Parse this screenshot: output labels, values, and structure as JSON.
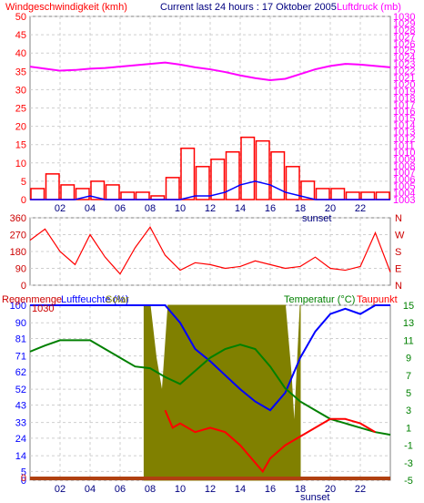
{
  "colors": {
    "red": "#ff0000",
    "blue": "#0000ff",
    "magenta": "#ff00ff",
    "darkred": "#cc0000",
    "green": "#008000",
    "olive": "#808000",
    "brown": "#b04010",
    "grid": "#cfcfcf",
    "frame": "#808080",
    "gust": "#ff0000",
    "speed": "#0000ff"
  },
  "chart_data": [
    {
      "type": "bar",
      "title_left": "Windgeschwindigkeit (kmh)",
      "title_center": "Current last 24 hours : 17 Oktober 2005",
      "title_right": "Luftdruck (mb)",
      "y_left": {
        "ticks": [
          "50",
          "45",
          "40",
          "35",
          "30",
          "25",
          "20",
          "15",
          "10",
          "5",
          "0"
        ],
        "range": [
          0,
          50
        ]
      },
      "y_right": {
        "ticks": [
          "1030",
          "1029",
          "1028",
          "1027",
          "1026",
          "1025",
          "1024",
          "1023",
          "1022",
          "1021",
          "1020",
          "1019",
          "1018",
          "1017",
          "1016",
          "1015",
          "1014",
          "1013",
          "1012",
          "1011",
          "1010",
          "1009",
          "1008",
          "1007",
          "1006",
          "1005",
          "1004",
          "1003"
        ],
        "range": [
          1003,
          1030
        ]
      },
      "x_ticks": [
        "02",
        "04",
        "06",
        "08",
        "10",
        "12",
        "14",
        "16",
        "18",
        "20",
        "22"
      ],
      "x_range": [
        0,
        24
      ],
      "annotation": "sunset",
      "series": [
        {
          "name": "Luftdruck",
          "axis": "right",
          "x": [
            0,
            1,
            2,
            3,
            4,
            5,
            6,
            7,
            8,
            9,
            10,
            11,
            12,
            13,
            14,
            15,
            16,
            17,
            18,
            19,
            20,
            21,
            22,
            23,
            24
          ],
          "values": [
            1022.6,
            1022.3,
            1022.0,
            1022.1,
            1022.3,
            1022.4,
            1022.6,
            1022.8,
            1023.0,
            1023.2,
            1022.9,
            1022.5,
            1022.2,
            1021.8,
            1021.3,
            1020.9,
            1020.6,
            1020.8,
            1021.5,
            1022.2,
            1022.7,
            1023.0,
            1022.9,
            1022.7,
            1022.5
          ]
        },
        {
          "name": "Windgeschwindigkeit",
          "axis": "left",
          "x": [
            0,
            1,
            2,
            3,
            4,
            5,
            6,
            7,
            8,
            9,
            10,
            11,
            12,
            13,
            14,
            15,
            16,
            17,
            18,
            19,
            20,
            21,
            22,
            23,
            24
          ],
          "values": [
            0,
            0,
            0,
            0,
            1,
            0,
            0,
            0,
            0,
            0,
            0,
            1,
            1,
            2,
            4,
            5,
            4,
            2,
            1,
            0,
            0,
            0,
            0,
            0,
            0
          ]
        },
        {
          "name": "Böen",
          "axis": "left",
          "x": [
            0,
            1,
            2,
            3,
            4,
            5,
            6,
            7,
            8,
            9,
            10,
            11,
            12,
            13,
            14,
            15,
            16,
            17,
            18,
            19,
            20,
            21,
            22,
            23,
            24
          ],
          "values": [
            3,
            7,
            4,
            3,
            5,
            4,
            2,
            2,
            1,
            6,
            14,
            9,
            11,
            13,
            17,
            16,
            13,
            9,
            5,
            3,
            3,
            2,
            2,
            2,
            6
          ]
        }
      ]
    },
    {
      "type": "line",
      "y_left": {
        "ticks": [
          "360",
          "270",
          "180",
          "90",
          "0"
        ],
        "range": [
          0,
          360
        ]
      },
      "y_right": {
        "ticks": [
          "N",
          "W",
          "S",
          "E",
          "N"
        ]
      },
      "x_range": [
        0,
        24
      ],
      "series": [
        {
          "name": "Windrichtung",
          "x": [
            0,
            1,
            2,
            3,
            4,
            5,
            6,
            7,
            8,
            9,
            10,
            11,
            12,
            13,
            14,
            15,
            16,
            17,
            18,
            19,
            20,
            21,
            22,
            23,
            24
          ],
          "values": [
            240,
            300,
            180,
            110,
            270,
            150,
            60,
            200,
            310,
            160,
            80,
            120,
            110,
            90,
            100,
            130,
            110,
            90,
            100,
            150,
            90,
            80,
            100,
            280,
            70
          ]
        }
      ]
    },
    {
      "type": "line",
      "title_left": "Regenmenge",
      "title_left2": "Luftfeuchte (%)",
      "title_left3": "Solar",
      "title_right": "Temperatur (°C)",
      "title_right2": "Taupunkt",
      "y_left": {
        "ticks": [
          "100",
          "90",
          "81",
          "71",
          "62",
          "52",
          "43",
          "33",
          "24",
          "14",
          "5",
          "0"
        ],
        "range": [
          0,
          100
        ]
      },
      "y_left_inner": {
        "ticks": [
          "1030",
          "0"
        ]
      },
      "y_right": {
        "ticks": [
          "15",
          "13",
          "11",
          "9",
          "7",
          "5",
          "3",
          "1",
          "-1",
          "-3",
          "-5"
        ],
        "range": [
          -5,
          15
        ]
      },
      "x_ticks": [
        "02",
        "04",
        "06",
        "08",
        "10",
        "12",
        "14",
        "16",
        "18",
        "20",
        "22"
      ],
      "x_range": [
        0,
        24
      ],
      "annotation": "sunset",
      "series": [
        {
          "name": "Solar",
          "axis": "left",
          "x": [
            7.6,
            8.0,
            8.4,
            8.8,
            9.2,
            9.6,
            10,
            11,
            12,
            13,
            14,
            15,
            16,
            17,
            17.4,
            17.6,
            18.0
          ],
          "values": [
            100,
            100,
            70,
            50,
            100,
            100,
            100,
            100,
            100,
            100,
            100,
            100,
            100,
            100,
            60,
            30,
            100
          ]
        },
        {
          "name": "Luftfeuchte",
          "axis": "left",
          "x": [
            0,
            2,
            4,
            6,
            8,
            9,
            10,
            11,
            12,
            13,
            14,
            15,
            16,
            17,
            18,
            19,
            20,
            21,
            22,
            23,
            24
          ],
          "values": [
            100,
            100,
            100,
            100,
            100,
            100,
            90,
            75,
            68,
            60,
            52,
            45,
            40,
            50,
            70,
            85,
            95,
            98,
            95,
            100,
            100
          ]
        },
        {
          "name": "Temperatur",
          "axis": "right",
          "x": [
            0,
            1,
            2,
            3,
            4,
            5,
            6,
            7,
            8,
            9,
            10,
            11,
            12,
            13,
            14,
            15,
            16,
            17,
            18,
            19,
            20,
            21,
            22,
            23,
            24
          ],
          "values": [
            9.7,
            10.4,
            11.0,
            11.0,
            11.0,
            10.0,
            9.0,
            8.0,
            7.8,
            6.8,
            6.0,
            7.5,
            9.0,
            10.0,
            10.5,
            10.0,
            8.0,
            5.5,
            4.0,
            3.0,
            2.0,
            1.5,
            1.0,
            0.5,
            0.2
          ]
        },
        {
          "name": "Taupunkt",
          "axis": "right",
          "x": [
            9.0,
            9.5,
            10,
            11,
            12,
            13,
            14,
            15,
            15.5,
            16,
            17,
            18,
            19,
            20,
            21,
            22,
            23
          ],
          "values": [
            3.0,
            1.0,
            1.5,
            0.5,
            1.0,
            0.5,
            -1.0,
            -3.0,
            -4.0,
            -2.5,
            -1.0,
            0.0,
            1.0,
            2.0,
            2.0,
            1.5,
            0.5
          ]
        },
        {
          "name": "Regenmenge",
          "axis": "left",
          "x": [
            0,
            24
          ],
          "values": [
            0,
            0
          ]
        }
      ]
    }
  ]
}
